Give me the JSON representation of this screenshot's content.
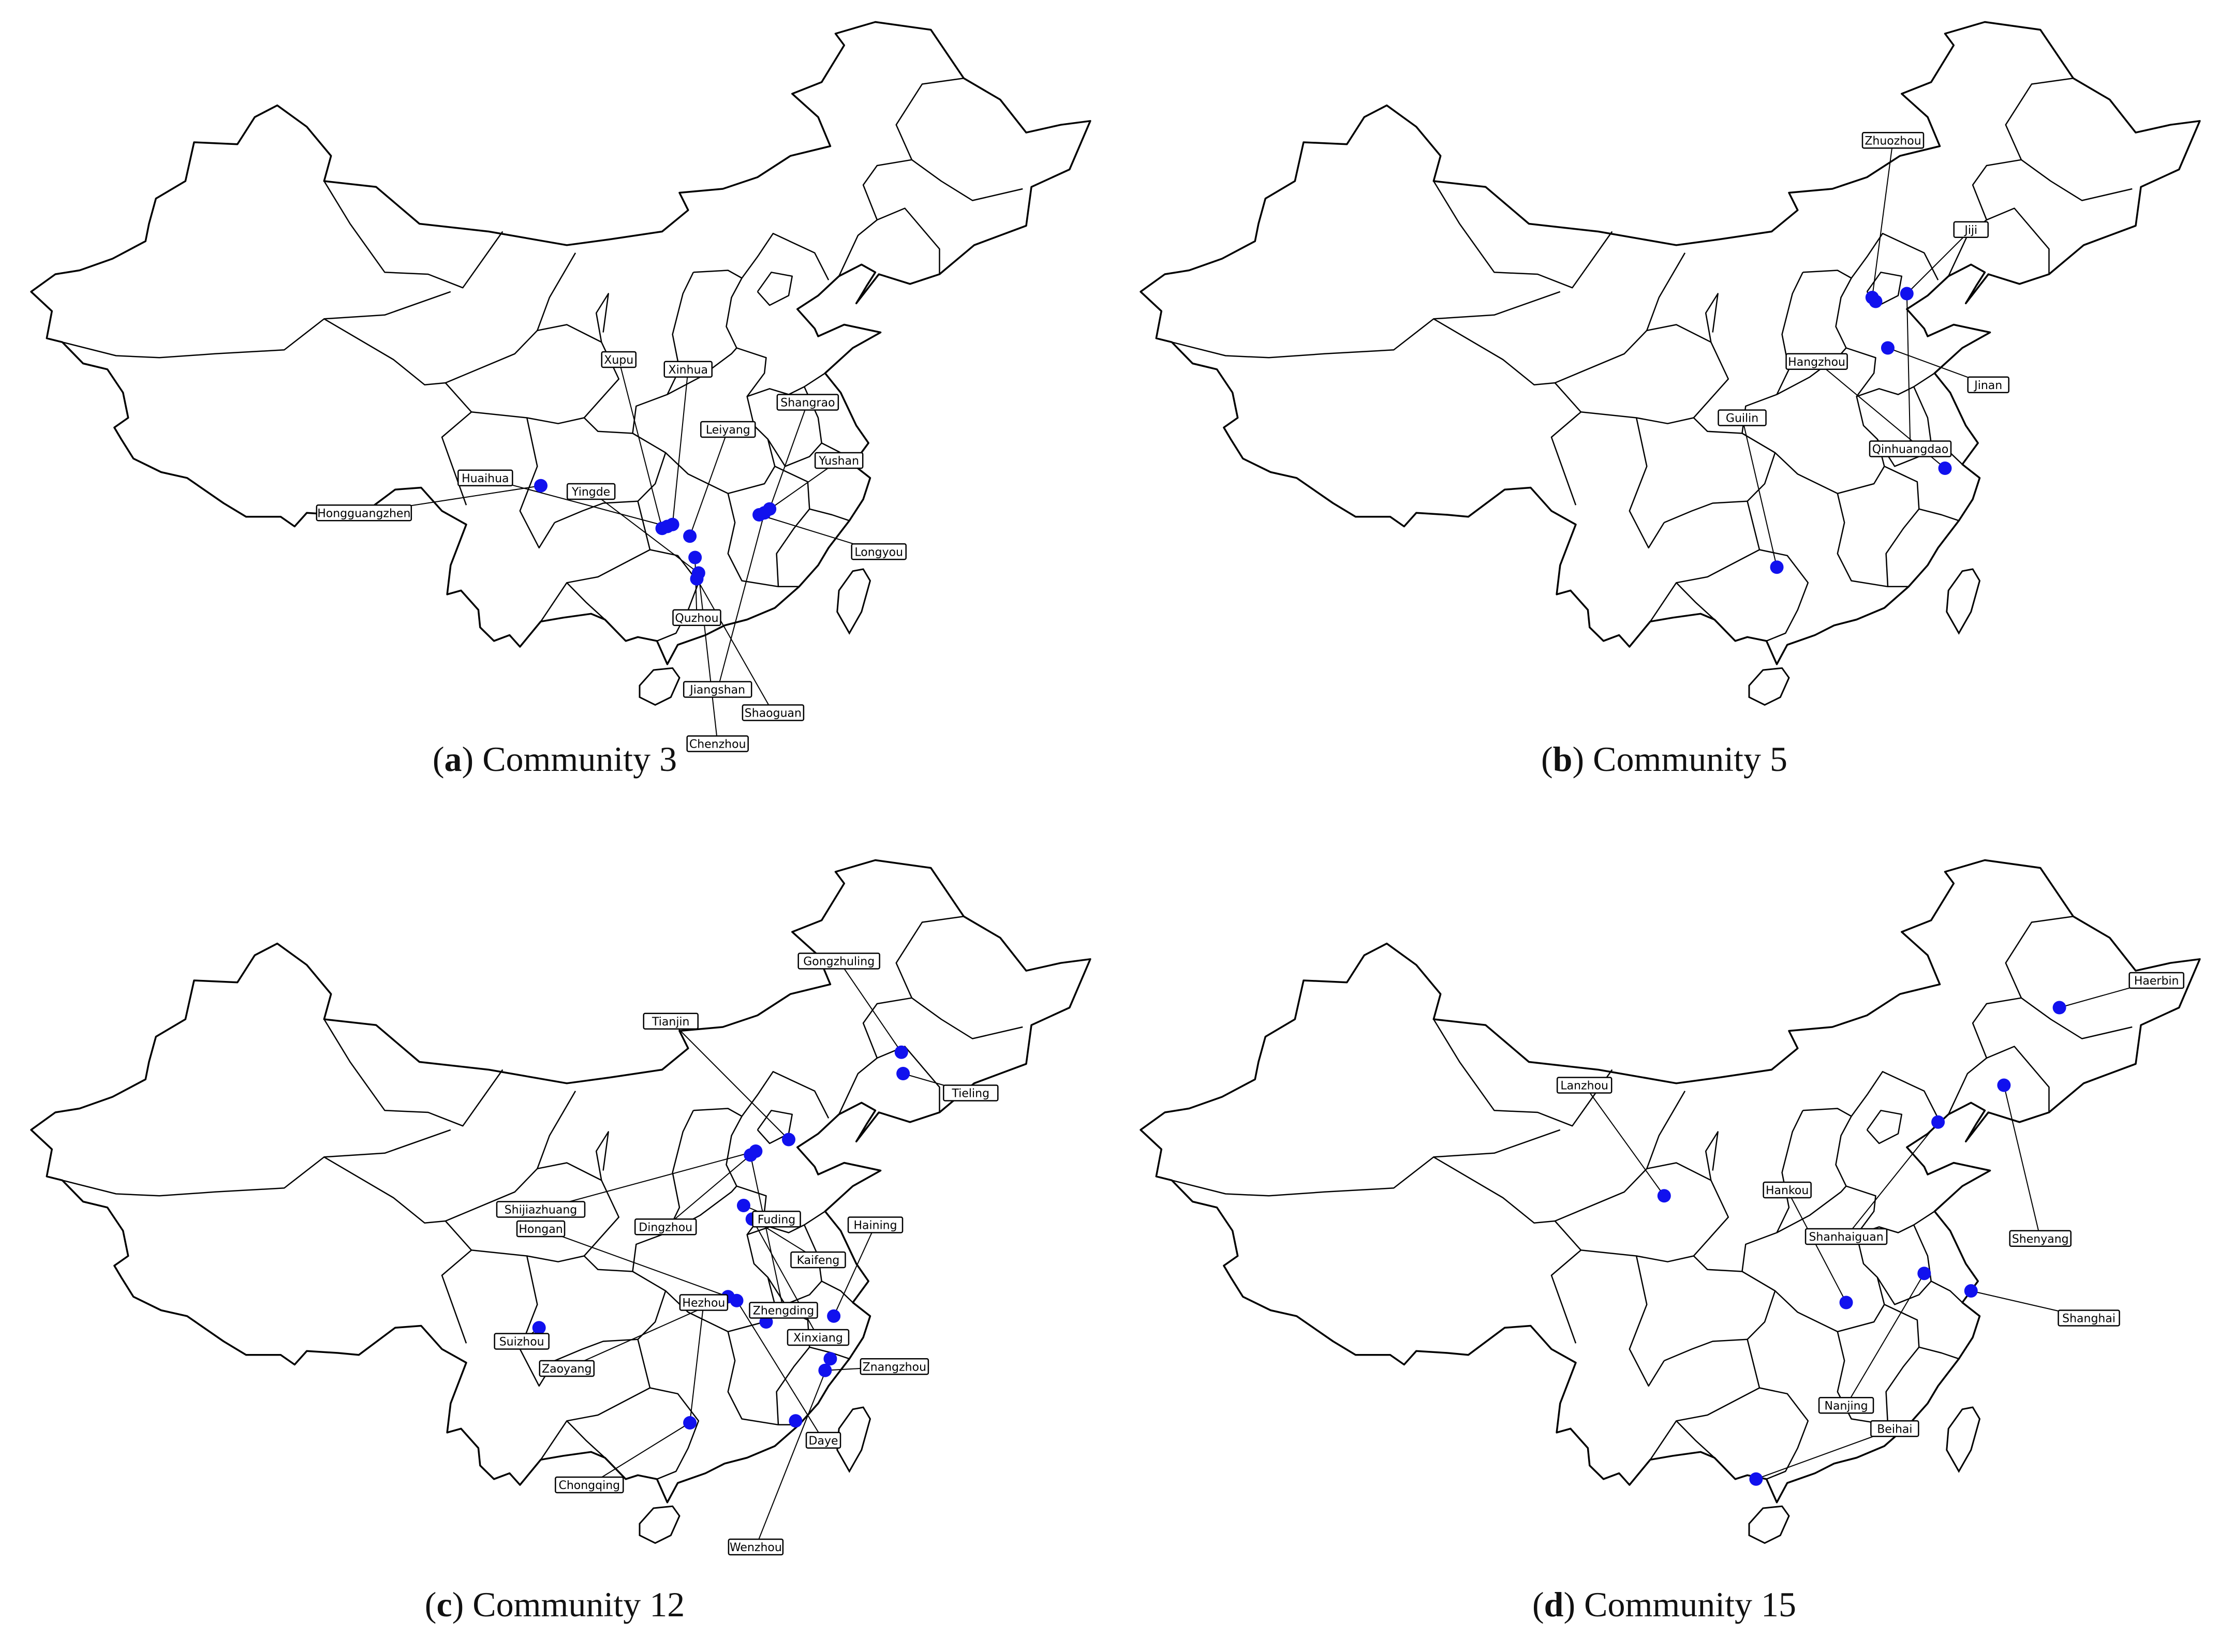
{
  "colors": {
    "dot": "#1111ee",
    "border": "#000000",
    "background": "#ffffff"
  },
  "panels": [
    {
      "letter": "a",
      "title": "Community 3",
      "points": [
        {
          "lon": 103.0,
          "lat": 29.5
        },
        {
          "lon": 110.0,
          "lat": 27.3
        },
        {
          "lon": 110.3,
          "lat": 27.4
        },
        {
          "lon": 110.6,
          "lat": 27.5
        },
        {
          "lon": 111.6,
          "lat": 26.9
        },
        {
          "lon": 111.9,
          "lat": 25.8
        },
        {
          "lon": 112.1,
          "lat": 25.0
        },
        {
          "lon": 112.0,
          "lat": 24.7
        },
        {
          "lon": 115.6,
          "lat": 28.0
        },
        {
          "lon": 115.9,
          "lat": 28.1
        },
        {
          "lon": 116.2,
          "lat": 28.3
        }
      ],
      "labels": [
        {
          "text": "Xupu",
          "lon": 107.5,
          "lat": 36.0,
          "p": 1
        },
        {
          "text": "Xinhua",
          "lon": 111.5,
          "lat": 35.5,
          "p": 3
        },
        {
          "text": "Shangrao",
          "lon": 118.4,
          "lat": 33.8,
          "p": 10
        },
        {
          "text": "Leiyang",
          "lon": 113.8,
          "lat": 32.4,
          "p": 4
        },
        {
          "text": "Yushan",
          "lon": 120.2,
          "lat": 30.8,
          "p": 9
        },
        {
          "text": "Huaihua",
          "lon": 99.8,
          "lat": 29.9,
          "p": 2
        },
        {
          "text": "Yingde",
          "lon": 105.9,
          "lat": 29.2,
          "p": 6
        },
        {
          "text": "Hongguangzhen",
          "lon": 92.8,
          "lat": 28.1,
          "p": 0
        },
        {
          "text": "Longyou",
          "lon": 122.5,
          "lat": 26.1,
          "p": 8
        },
        {
          "text": "Quzhou",
          "lon": 112.0,
          "lat": 22.7,
          "p": 5
        },
        {
          "text": "Jiangshan",
          "lon": 113.2,
          "lat": 19.0,
          "p": 9
        },
        {
          "text": "Shaoguan",
          "lon": 116.4,
          "lat": 17.8,
          "p": 7
        },
        {
          "text": "Chenzhou",
          "lon": 113.2,
          "lat": 16.2,
          "p": 6
        }
      ]
    },
    {
      "letter": "b",
      "title": "Community 5",
      "points": [
        {
          "lon": 115.8,
          "lat": 39.2
        },
        {
          "lon": 116.0,
          "lat": 39.0
        },
        {
          "lon": 117.8,
          "lat": 39.4
        },
        {
          "lon": 116.7,
          "lat": 36.6
        },
        {
          "lon": 120.0,
          "lat": 30.4
        },
        {
          "lon": 110.3,
          "lat": 25.3
        }
      ],
      "labels": [
        {
          "text": "Zhuozhou",
          "lon": 117.0,
          "lat": 47.3,
          "p": 0
        },
        {
          "text": "Jiji",
          "lon": 121.5,
          "lat": 42.7,
          "p": 2
        },
        {
          "text": "Hangzhou",
          "lon": 112.6,
          "lat": 35.9,
          "p": 4
        },
        {
          "text": "Jinan",
          "lon": 122.5,
          "lat": 34.7,
          "p": 3
        },
        {
          "text": "Guilin",
          "lon": 108.3,
          "lat": 33.0,
          "p": 5
        },
        {
          "text": "Qinhuangdao",
          "lon": 118.0,
          "lat": 31.4,
          "p": 2
        }
      ]
    },
    {
      "letter": "c",
      "title": "Community 12",
      "points": [
        {
          "lon": 123.8,
          "lat": 43.5
        },
        {
          "lon": 123.9,
          "lat": 42.4
        },
        {
          "lon": 117.3,
          "lat": 39.0
        },
        {
          "lon": 115.1,
          "lat": 38.2
        },
        {
          "lon": 115.4,
          "lat": 38.4
        },
        {
          "lon": 114.7,
          "lat": 35.6
        },
        {
          "lon": 115.2,
          "lat": 34.9
        },
        {
          "lon": 113.8,
          "lat": 30.9
        },
        {
          "lon": 114.3,
          "lat": 30.7
        },
        {
          "lon": 116.0,
          "lat": 29.6
        },
        {
          "lon": 119.9,
          "lat": 29.9
        },
        {
          "lon": 102.9,
          "lat": 29.3
        },
        {
          "lon": 119.7,
          "lat": 27.7
        },
        {
          "lon": 119.4,
          "lat": 27.1
        },
        {
          "lon": 111.6,
          "lat": 24.4
        },
        {
          "lon": 117.7,
          "lat": 24.5
        }
      ],
      "labels": [
        {
          "text": "Gongzhuling",
          "lon": 120.2,
          "lat": 48.2,
          "p": 0
        },
        {
          "text": "Tianjin",
          "lon": 110.5,
          "lat": 45.1,
          "p": 2
        },
        {
          "text": "Tieling",
          "lon": 127.8,
          "lat": 41.4,
          "p": 1
        },
        {
          "text": "Shijiazhuang",
          "lon": 103.0,
          "lat": 35.4,
          "p": 4
        },
        {
          "text": "Dingzhou",
          "lon": 110.2,
          "lat": 34.5,
          "p": 3
        },
        {
          "text": "Fuding",
          "lon": 116.6,
          "lat": 34.9,
          "p": 5
        },
        {
          "text": "Haining",
          "lon": 122.3,
          "lat": 34.6,
          "p": 10
        },
        {
          "text": "Hongan",
          "lon": 103.0,
          "lat": 34.4,
          "p": 7
        },
        {
          "text": "Kaifeng",
          "lon": 119.0,
          "lat": 32.8,
          "p": 6
        },
        {
          "text": "Hezhou",
          "lon": 112.4,
          "lat": 30.6,
          "p": 14
        },
        {
          "text": "Zhengding",
          "lon": 117.0,
          "lat": 30.2,
          "p": 3
        },
        {
          "text": "Suizhou",
          "lon": 101.9,
          "lat": 28.6,
          "p": 11
        },
        {
          "text": "Xinxiang",
          "lon": 119.0,
          "lat": 28.8,
          "p": 6
        },
        {
          "text": "Zaoyang",
          "lon": 104.5,
          "lat": 27.2,
          "p": 7
        },
        {
          "text": "Znangzhou",
          "lon": 123.4,
          "lat": 27.3,
          "p": 13
        },
        {
          "text": "Daye",
          "lon": 119.3,
          "lat": 23.5,
          "p": 8
        },
        {
          "text": "Chongqing",
          "lon": 105.8,
          "lat": 21.2,
          "p": 14
        },
        {
          "text": "Wenzhou",
          "lon": 115.4,
          "lat": 18.0,
          "p": 12
        }
      ]
    },
    {
      "letter": "d",
      "title": "Community 15",
      "points": [
        {
          "lon": 126.6,
          "lat": 45.8
        },
        {
          "lon": 123.4,
          "lat": 41.8
        },
        {
          "lon": 119.6,
          "lat": 39.9
        },
        {
          "lon": 103.8,
          "lat": 36.1
        },
        {
          "lon": 114.3,
          "lat": 30.6
        },
        {
          "lon": 118.8,
          "lat": 32.1
        },
        {
          "lon": 121.5,
          "lat": 31.2
        },
        {
          "lon": 109.1,
          "lat": 21.5
        }
      ],
      "labels": [
        {
          "text": "Haerbin",
          "lon": 132.2,
          "lat": 47.2,
          "p": 0
        },
        {
          "text": "Lanzhou",
          "lon": 99.2,
          "lat": 41.8,
          "p": 3
        },
        {
          "text": "Hankou",
          "lon": 110.9,
          "lat": 36.4,
          "p": 4
        },
        {
          "text": "Shanhaiguan",
          "lon": 114.3,
          "lat": 34.0,
          "p": 2
        },
        {
          "text": "Shenyang",
          "lon": 125.5,
          "lat": 33.9,
          "p": 1
        },
        {
          "text": "Shanghai",
          "lon": 128.3,
          "lat": 29.8,
          "p": 6
        },
        {
          "text": "Nanjing",
          "lon": 114.3,
          "lat": 25.3,
          "p": 5
        },
        {
          "text": "Beihai",
          "lon": 117.1,
          "lat": 24.1,
          "p": 7
        }
      ]
    }
  ]
}
